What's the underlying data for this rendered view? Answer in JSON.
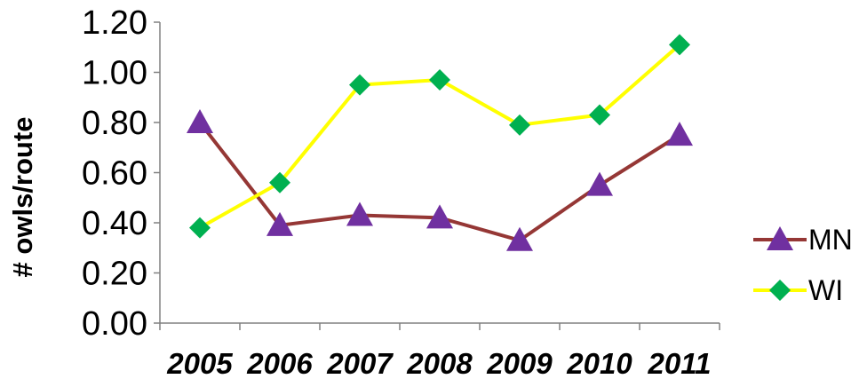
{
  "chart_data": {
    "type": "line",
    "title": "",
    "xlabel": "",
    "ylabel": "# owls/route",
    "categories": [
      "2005",
      "2006",
      "2007",
      "2008",
      "2009",
      "2010",
      "2011"
    ],
    "y_ticks": [
      "0.00",
      "0.20",
      "0.40",
      "0.60",
      "0.80",
      "1.00",
      "1.20"
    ],
    "ylim": [
      0,
      1.2
    ],
    "grid": false,
    "legend_position": "right",
    "series": [
      {
        "name": "MN",
        "values": [
          0.8,
          0.39,
          0.43,
          0.42,
          0.33,
          0.55,
          0.75
        ],
        "line_color": "#953735",
        "marker": "triangle",
        "marker_color": "#7030A0"
      },
      {
        "name": "WI",
        "values": [
          0.38,
          0.56,
          0.95,
          0.97,
          0.79,
          0.83,
          1.11
        ],
        "line_color": "#FFFF00",
        "marker": "diamond",
        "marker_color": "#00B050"
      }
    ]
  }
}
